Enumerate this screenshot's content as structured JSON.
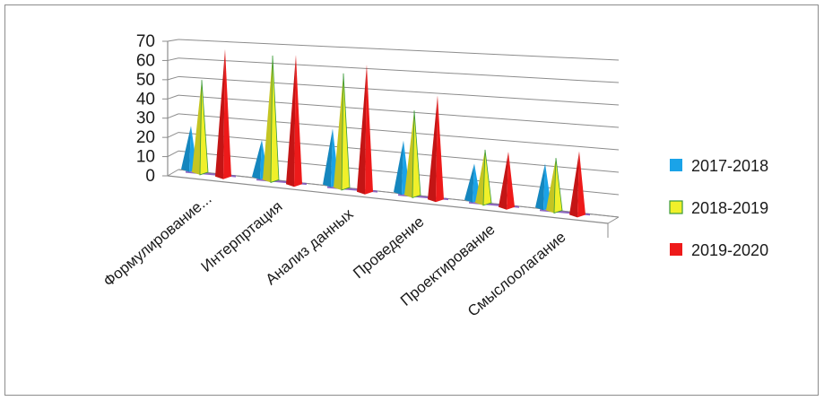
{
  "chart_data": {
    "type": "bar",
    "variant": "3d-cone",
    "title": "",
    "xlabel": "",
    "ylabel": "",
    "ylim": [
      0,
      70
    ],
    "yticks": [
      0,
      10,
      20,
      30,
      40,
      50,
      60,
      70
    ],
    "grid": true,
    "legend_position": "right",
    "categories": [
      "Формулирование...",
      "Интерпртация",
      "Анализ данных",
      "Проведение",
      "Проектирование",
      "Смыслоолагание"
    ],
    "series": [
      {
        "name": "2017-2018",
        "color": "#1aa3e8",
        "values": [
          23,
          19,
          28,
          25,
          17,
          20
        ]
      },
      {
        "name": "2018-2019",
        "color": "#f0f02a",
        "values": [
          48,
          63,
          56,
          40,
          24,
          23
        ]
      },
      {
        "name": "2019-2020",
        "color": "#ee1a1a",
        "values": [
          65,
          64,
          61,
          48,
          24,
          27
        ]
      }
    ]
  }
}
